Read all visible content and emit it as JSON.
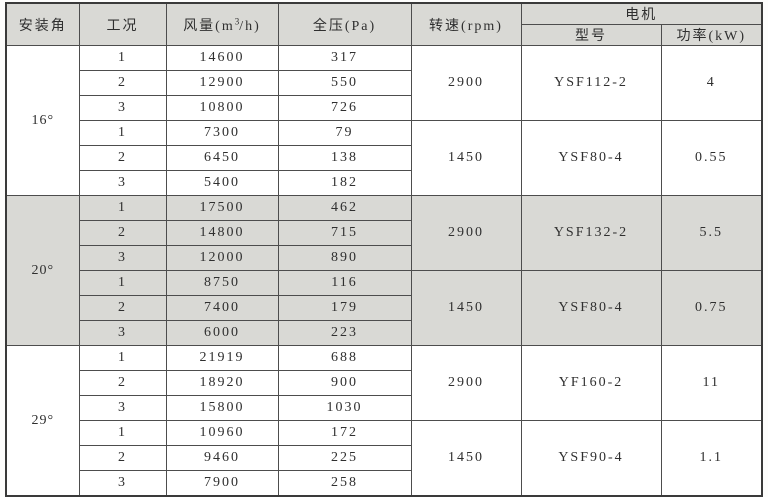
{
  "table": {
    "headers": {
      "angle": "安装角",
      "condition": "工况",
      "airflow_prefix": "风量(m",
      "airflow_sup": "3",
      "airflow_suffix": "/h)",
      "pressure": "全压(Pa)",
      "speed": "转速(rpm)",
      "motor": "电机",
      "model": "型号",
      "power": "功率(kW)"
    },
    "colors": {
      "shaded_row_bg": "#d9d9d5",
      "header_bg": "#d9d9d5",
      "border": "#4d4d4d",
      "text": "#2f2f2f"
    },
    "sections": [
      {
        "angle": "16°",
        "shaded": false,
        "groups": [
          {
            "speed": "2900",
            "model": "YSF112-2",
            "power": "4",
            "rows": [
              {
                "cond": "1",
                "flow": "14600",
                "pressure": "317"
              },
              {
                "cond": "2",
                "flow": "12900",
                "pressure": "550"
              },
              {
                "cond": "3",
                "flow": "10800",
                "pressure": "726"
              }
            ]
          },
          {
            "speed": "1450",
            "model": "YSF80-4",
            "power": "0.55",
            "rows": [
              {
                "cond": "1",
                "flow": "7300",
                "pressure": "79"
              },
              {
                "cond": "2",
                "flow": "6450",
                "pressure": "138"
              },
              {
                "cond": "3",
                "flow": "5400",
                "pressure": "182"
              }
            ]
          }
        ]
      },
      {
        "angle": "20°",
        "shaded": true,
        "groups": [
          {
            "speed": "2900",
            "model": "YSF132-2",
            "power": "5.5",
            "rows": [
              {
                "cond": "1",
                "flow": "17500",
                "pressure": "462"
              },
              {
                "cond": "2",
                "flow": "14800",
                "pressure": "715"
              },
              {
                "cond": "3",
                "flow": "12000",
                "pressure": "890"
              }
            ]
          },
          {
            "speed": "1450",
            "model": "YSF80-4",
            "power": "0.75",
            "rows": [
              {
                "cond": "1",
                "flow": "8750",
                "pressure": "116"
              },
              {
                "cond": "2",
                "flow": "7400",
                "pressure": "179"
              },
              {
                "cond": "3",
                "flow": "6000",
                "pressure": "223"
              }
            ]
          }
        ]
      },
      {
        "angle": "29°",
        "shaded": false,
        "groups": [
          {
            "speed": "2900",
            "model": "YF160-2",
            "power": "11",
            "rows": [
              {
                "cond": "1",
                "flow": "21919",
                "pressure": "688"
              },
              {
                "cond": "2",
                "flow": "18920",
                "pressure": "900"
              },
              {
                "cond": "3",
                "flow": "15800",
                "pressure": "1030"
              }
            ]
          },
          {
            "speed": "1450",
            "model": "YSF90-4",
            "power": "1.1",
            "rows": [
              {
                "cond": "1",
                "flow": "10960",
                "pressure": "172"
              },
              {
                "cond": "2",
                "flow": "9460",
                "pressure": "225"
              },
              {
                "cond": "3",
                "flow": "7900",
                "pressure": "258"
              }
            ]
          }
        ]
      }
    ]
  }
}
